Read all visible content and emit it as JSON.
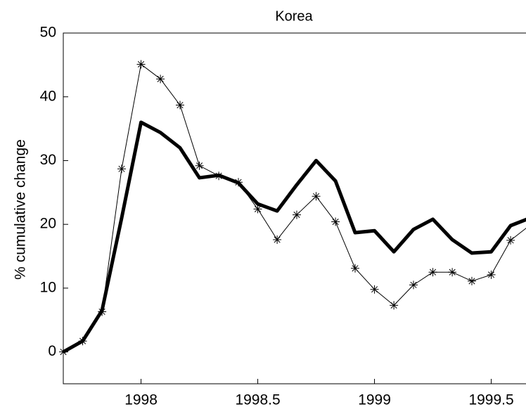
{
  "chart_data": {
    "type": "line",
    "title": "Korea",
    "y_label": "% cumulative change",
    "x": [
      1997.667,
      1997.75,
      1997.833,
      1997.917,
      1998,
      1998.083,
      1998.167,
      1998.25,
      1998.333,
      1998.417,
      1998.5,
      1998.583,
      1998.667,
      1998.75,
      1998.833,
      1998.917,
      1999,
      1999.083,
      1999.167,
      1999.25,
      1999.333,
      1999.417,
      1999.5,
      1999.583,
      1999.667
    ],
    "series": [
      {
        "color": "#000000",
        "line_width": 5,
        "marker": "none",
        "values": [
          0,
          1.7,
          6.5,
          21,
          36,
          34.4,
          32,
          27.3,
          27.7,
          26.5,
          23.2,
          22.1,
          26.2,
          30,
          26.8,
          18.7,
          19,
          15.7,
          19.2,
          20.8,
          17.6,
          15.5,
          15.7,
          19.8,
          21
        ]
      },
      {
        "color": "#000000",
        "line_width": 1,
        "marker": "asterisk",
        "values": [
          0,
          1.7,
          6.3,
          28.7,
          45.1,
          42.8,
          38.7,
          29.2,
          27.6,
          26.6,
          22.4,
          17.6,
          21.5,
          24.4,
          20.4,
          13.1,
          9.8,
          7.3,
          10.5,
          12.5,
          12.5,
          11.1,
          12.1,
          17.5,
          19.9
        ]
      }
    ],
    "xlim": [
      1997.667,
      1999.667
    ],
    "ylim": [
      -5,
      50
    ],
    "xticks": [
      1998,
      1998.5,
      1999,
      1999.5
    ],
    "yticks": [
      0,
      10,
      20,
      30,
      40,
      50
    ],
    "grid": false
  }
}
